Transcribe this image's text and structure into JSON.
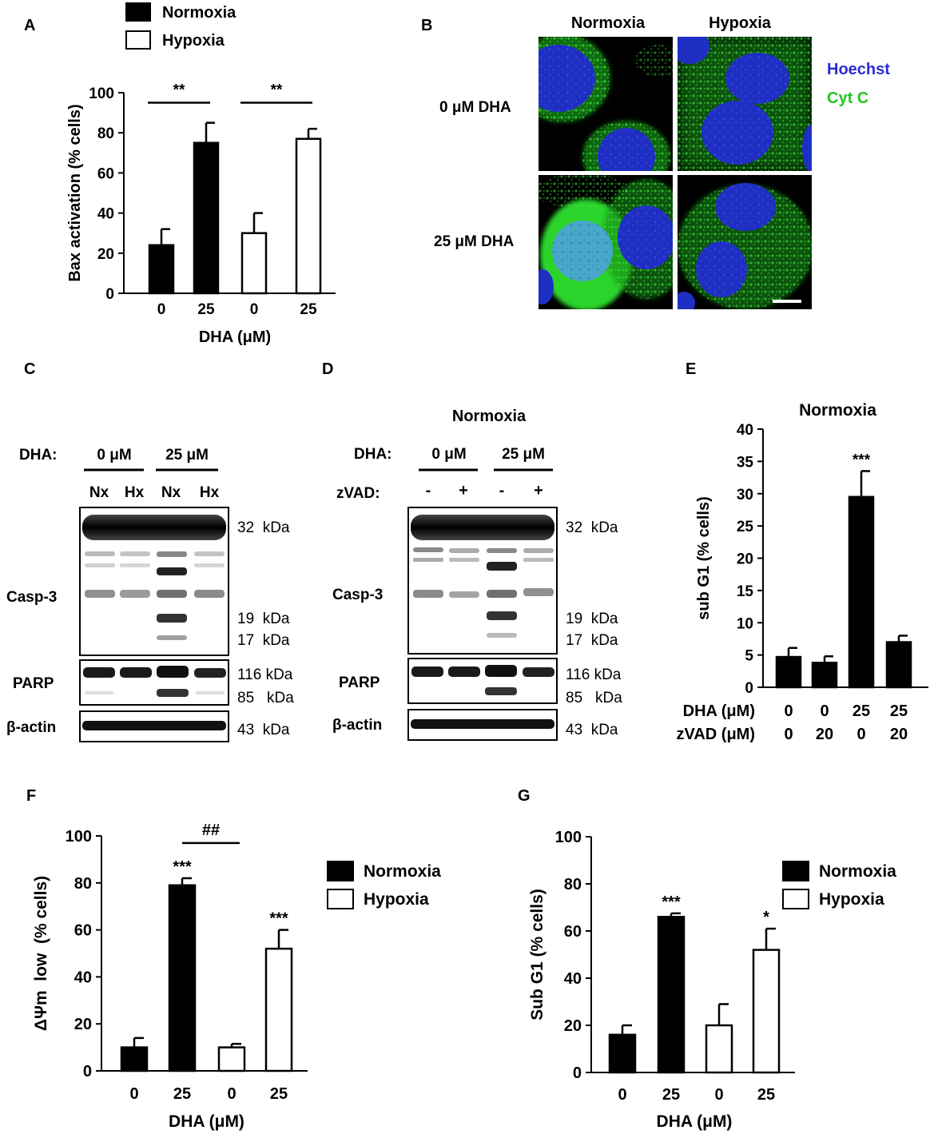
{
  "panel_letters": {
    "A": "A",
    "B": "B",
    "C": "C",
    "D": "D",
    "E": "E",
    "F": "F",
    "G": "G"
  },
  "legend": {
    "normoxia": "Normoxia",
    "hypoxia": "Hypoxia"
  },
  "colors": {
    "normoxia": "#000000",
    "hypoxia": "#ffffff",
    "hoechst": "#2b2bd6",
    "cytc": "#22c422",
    "image_bg": "#000000"
  },
  "panel_b": {
    "col_labels": [
      "Normoxia",
      "Hypoxia"
    ],
    "row_labels": [
      "0 μM DHA",
      "25 μM DHA"
    ],
    "stain_legend": {
      "hoechst": "Hoechst",
      "cytc": "Cyt C"
    }
  },
  "panel_c": {
    "dha_label": "DHA:",
    "conc_labels": [
      "0 μM",
      "25 μM"
    ],
    "lane_labels": [
      "Nx",
      "Hx",
      "Nx",
      "Hx"
    ],
    "casp3_label": "Casp-3",
    "parp_label": "PARP",
    "actin_label": "β-actin",
    "kda": [
      "32  kDa",
      "19  kDa",
      "17  kDa",
      "116 kDa",
      "85   kDa",
      "43  kDa"
    ]
  },
  "panel_d": {
    "title": "Normoxia",
    "dha_label": "DHA:",
    "conc_labels": [
      "0 μM",
      "25 μM"
    ],
    "zvad_label": "zVAD:",
    "lane_labels": [
      "-",
      "+",
      "-",
      "+"
    ],
    "casp3_label": "Casp-3",
    "parp_label": "PARP",
    "actin_label": "β-actin",
    "kda": [
      "32  kDa",
      "19  kDa",
      "17  kDa",
      "116 kDa",
      "85   kDa",
      "43  kDa"
    ]
  },
  "chart_data": [
    {
      "id": "A",
      "type": "bar",
      "title": "",
      "xlabel": "DHA (μM)",
      "ylabel": "Bax activation (% cells)",
      "ylim": [
        0,
        100
      ],
      "yticks": [
        0,
        20,
        40,
        60,
        80,
        100
      ],
      "categories": [
        "0",
        "25",
        "0",
        "25"
      ],
      "groups": [
        "Normoxia",
        "Normoxia",
        "Hypoxia",
        "Hypoxia"
      ],
      "values": [
        24,
        75,
        30,
        77
      ],
      "errors": [
        8,
        10,
        10,
        5
      ],
      "brackets": [
        {
          "from": 0,
          "to": 1,
          "label": "**"
        },
        {
          "from": 2,
          "to": 3,
          "label": "**"
        }
      ],
      "annotations": [
        "",
        "",
        "",
        ""
      ]
    },
    {
      "id": "E",
      "type": "bar",
      "title": "Normoxia",
      "xlabel": "",
      "ylabel": "sub G1 (% cells)",
      "ylim": [
        0,
        40
      ],
      "yticks": [
        0,
        5,
        10,
        15,
        20,
        25,
        30,
        35,
        40
      ],
      "row_labels": [
        "DHA (μM)",
        "zVAD (μM)"
      ],
      "rows": [
        [
          "0",
          "0",
          "25",
          "25"
        ],
        [
          "0",
          "20",
          "0",
          "20"
        ]
      ],
      "groups": [
        "Normoxia",
        "Normoxia",
        "Normoxia",
        "Normoxia"
      ],
      "values": [
        4.7,
        3.8,
        29.5,
        7.0
      ],
      "errors": [
        1.4,
        1.0,
        4.0,
        1.0
      ],
      "annotations": [
        "",
        "",
        "***",
        ""
      ]
    },
    {
      "id": "F",
      "type": "bar",
      "title": "",
      "xlabel": "DHA (μM)",
      "ylabel": "ΔΨm  low  (% cells)",
      "ylim": [
        0,
        100
      ],
      "yticks": [
        0,
        20,
        40,
        60,
        80,
        100
      ],
      "categories": [
        "0",
        "25",
        "0",
        "25"
      ],
      "groups": [
        "Normoxia",
        "Normoxia",
        "Hypoxia",
        "Hypoxia"
      ],
      "values": [
        10,
        79,
        10,
        52
      ],
      "errors": [
        4,
        3,
        1.5,
        8
      ],
      "brackets": [
        {
          "from": 1,
          "to": 2,
          "label": "##"
        }
      ],
      "annotations": [
        "",
        "***",
        "",
        "***"
      ]
    },
    {
      "id": "G",
      "type": "bar",
      "title": "",
      "xlabel": "DHA (μM)",
      "ylabel": "Sub G1 (% cells)",
      "ylim": [
        0,
        100
      ],
      "yticks": [
        0,
        20,
        40,
        60,
        80,
        100
      ],
      "categories": [
        "0",
        "25",
        "0",
        "25"
      ],
      "groups": [
        "Normoxia",
        "Normoxia",
        "Hypoxia",
        "Hypoxia"
      ],
      "values": [
        16,
        66,
        20,
        52
      ],
      "errors": [
        4,
        1.5,
        9,
        9
      ],
      "brackets": [],
      "annotations": [
        "",
        "***",
        "",
        "*"
      ]
    }
  ]
}
